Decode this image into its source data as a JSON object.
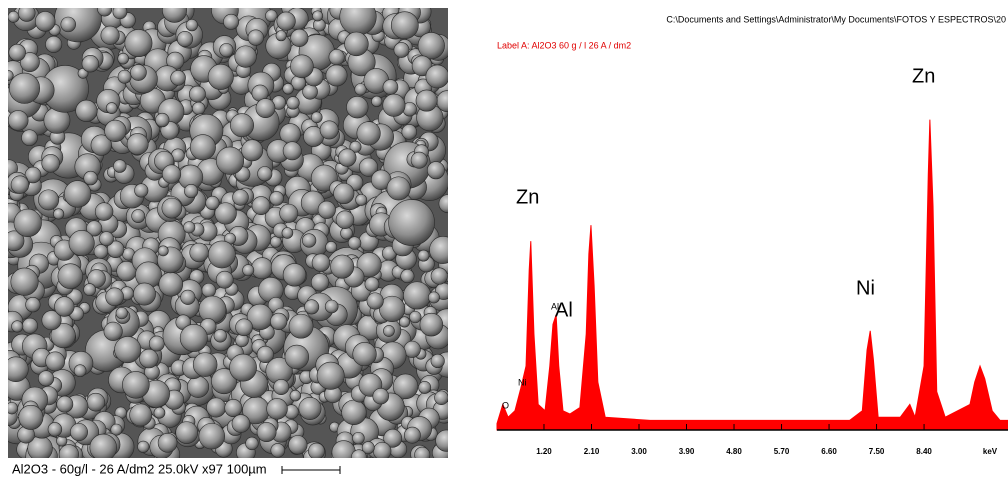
{
  "sem_image": {
    "caption": "Al2O3 - 60g/l - 26 A/dm2  25.0kV  x97  100µm"
  },
  "chart_data": {
    "type": "area",
    "path_header": "C:\\Documents and Settings\\Administrator\\My Documents\\FOTOS Y ESPECTROS\\20",
    "label": "Label A:  Al2O3 60 g / l 26 A / dm2",
    "x_label": "keV",
    "color": "#ff0000",
    "annotations": [
      "O",
      "Ni",
      "Zn",
      "Al",
      "Al",
      "Ni",
      "Zn"
    ],
    "x": [
      0.31,
      0.42,
      0.52,
      0.65,
      0.76,
      0.86,
      0.92,
      0.95,
      1.01,
      1.09,
      1.22,
      1.31,
      1.37,
      1.43,
      1.48,
      1.56,
      1.69,
      1.88,
      2.0,
      2.05,
      2.09,
      2.15,
      2.22,
      2.36,
      3.21,
      4.16,
      5.1,
      6.05,
      6.99,
      7.23,
      7.32,
      7.38,
      7.44,
      7.53,
      7.95,
      8.13,
      8.23,
      8.4,
      8.48,
      8.51,
      8.57,
      8.64,
      8.8,
      9.27,
      9.36,
      9.46,
      9.55,
      9.69,
      9.84,
      9.99
    ],
    "values": [
      2,
      8,
      4,
      6,
      13,
      20,
      50,
      59,
      30,
      8,
      6,
      20,
      33,
      36,
      20,
      6,
      5,
      7,
      30,
      55,
      64,
      45,
      15,
      4,
      3,
      3,
      3,
      3,
      3,
      6,
      25,
      31,
      22,
      4,
      4,
      8,
      4,
      20,
      80,
      97,
      70,
      12,
      4,
      8,
      15,
      20,
      16,
      6,
      3,
      3
    ],
    "xlim": [
      0.31,
      9.99
    ],
    "ylim": [
      0,
      100
    ],
    "xticks": [
      {
        "value": 1.2,
        "label": "1.20"
      },
      {
        "value": 2.1,
        "label": "2.10"
      },
      {
        "value": 3.0,
        "label": "3.00"
      },
      {
        "value": 3.9,
        "label": "3.90"
      },
      {
        "value": 4.8,
        "label": "4.80"
      },
      {
        "value": 5.7,
        "label": "5.70"
      },
      {
        "value": 6.6,
        "label": "6.60"
      },
      {
        "value": 7.5,
        "label": "7.50"
      },
      {
        "value": 8.4,
        "label": "8.40"
      }
    ]
  }
}
